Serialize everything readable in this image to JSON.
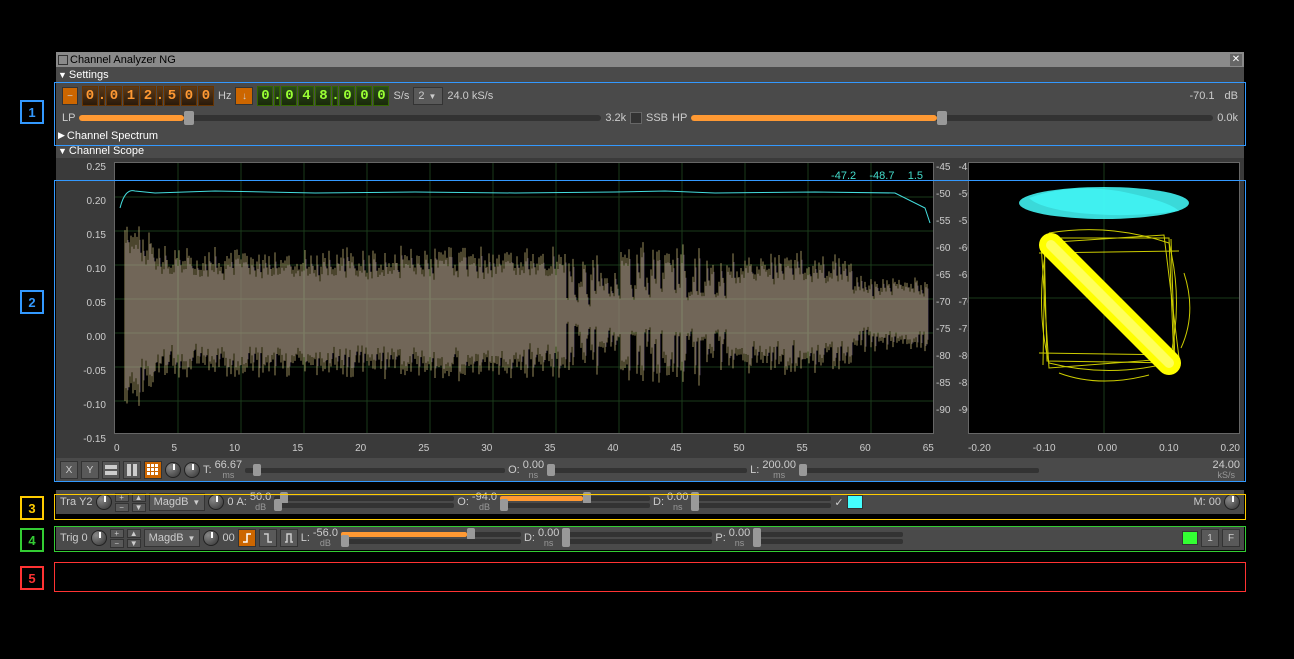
{
  "title": "Channel Analyzer NG",
  "sections": {
    "settings": "Settings",
    "spectrum": "Channel Spectrum",
    "scope": "Channel Scope"
  },
  "numbers": {
    "n1": "1",
    "n2": "2",
    "n3": "3",
    "n4": "4",
    "n5": "5"
  },
  "panel1": {
    "freq_digits": [
      "0",
      "0",
      "1",
      "2",
      "5",
      "0",
      "0"
    ],
    "freq_unit": "Hz",
    "rate_digits": [
      "0",
      "0",
      "4",
      "8",
      "0",
      "0",
      "0"
    ],
    "rate_unit": "S/s",
    "decim": "2",
    "rate_display": "24.0 kS/s",
    "power": "-70.1",
    "power_unit": "dB",
    "lp_label": "LP",
    "lp_val": "3.2k",
    "ssb_label": "SSB",
    "hp_label": "HP",
    "hp_val": "0.0k"
  },
  "scope": {
    "y_ticks": [
      "0.25",
      "0.20",
      "0.15",
      "0.10",
      "0.05",
      "0.00",
      "-0.05",
      "-0.10",
      "-0.15"
    ],
    "db_ticks": [
      "-45",
      "-50",
      "-55",
      "-60",
      "-65",
      "-70",
      "-75",
      "-80",
      "-85",
      "-90"
    ],
    "x_ticks": [
      "0",
      "5",
      "10",
      "15",
      "20",
      "25",
      "30",
      "35",
      "40",
      "45",
      "50",
      "55",
      "60",
      "65"
    ],
    "overlay": {
      "v1": "-47.2",
      "v2": "-48.7",
      "v3": "1.5"
    },
    "xy_x_ticks": [
      "-0.20",
      "-0.10",
      "0.00",
      "0.10",
      "0.20"
    ],
    "colors": {
      "mag": "#4dd",
      "trace1": "#c8b878",
      "trace2": "#a890c0",
      "xy1": "#4ff",
      "xy2": "#ff0",
      "grid": "#1a3a1a"
    }
  },
  "tb3": {
    "x": "X",
    "y": "Y",
    "t_label": "T:",
    "t_val": "66.67",
    "t_unit": "ms",
    "o_label": "O:",
    "o_val": "0.00",
    "o_unit": "ns",
    "l_label": "L:",
    "l_val": "200.00",
    "l_unit": "ms",
    "rate": "24.00",
    "rate_unit": "kS/s"
  },
  "tb4": {
    "tra": "Tra",
    "y2": "Y2",
    "mode": "MagdB",
    "zero": "0",
    "a_label": "A:",
    "a_val": "50.0",
    "a_unit": "dB",
    "o_label": "O:",
    "o_val": "-94.0",
    "o_unit": "dB",
    "d_label": "D:",
    "d_val": "0.00",
    "d_unit": "ns",
    "check": "✓",
    "color": "#4ff",
    "m_label": "M:",
    "m_val": "00"
  },
  "tb5": {
    "trig": "Trig",
    "zero": "0",
    "mode": "MagdB",
    "dz": "00",
    "l_label": "L:",
    "l_val": "-56.0",
    "l_unit": "dB",
    "d_label": "D:",
    "d_val": "0.00",
    "d_unit": "ns",
    "p_label": "P:",
    "p_val": "0.00",
    "p_unit": "ns",
    "green": "#33ff33",
    "one": "1",
    "f": "F"
  },
  "colors": {
    "box1": "#3399ff",
    "box2": "#3399ff",
    "box3": "#ffcc00",
    "box4": "#33cc33",
    "box5": "#ff3333"
  }
}
